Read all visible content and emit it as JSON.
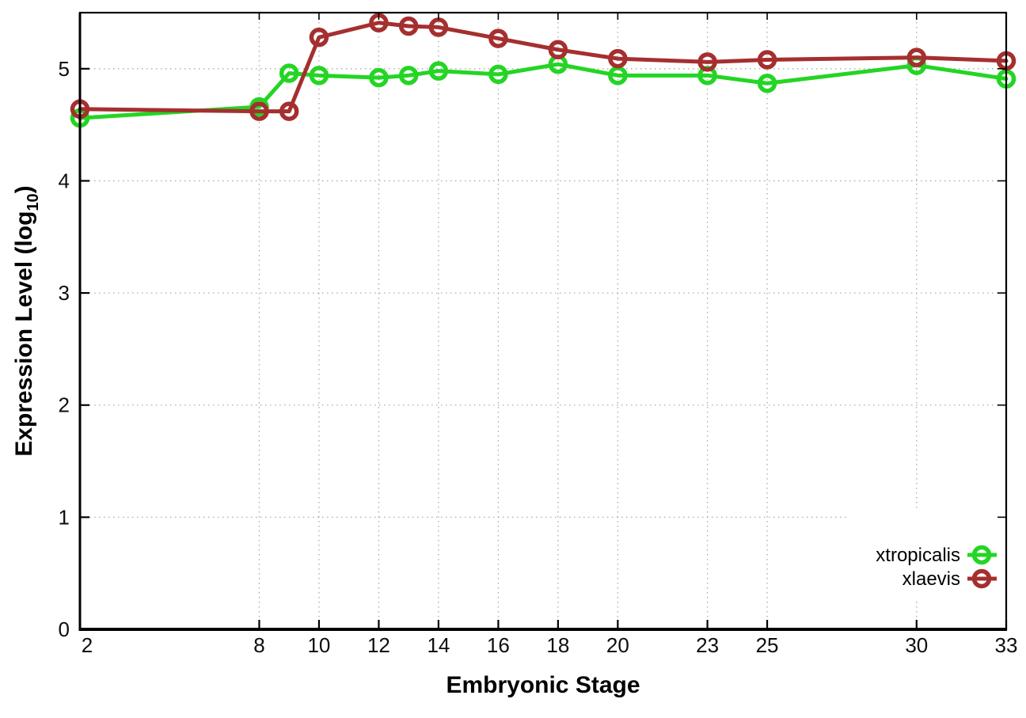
{
  "figure": {
    "background": "#ffffff",
    "grid_color": "#aaaaaa",
    "axis_color": "#000000",
    "text_color": "#0d0d0d"
  },
  "chart_data": {
    "type": "line",
    "title": "",
    "xlabel": "Embryonic Stage",
    "ylabel": "Expression Level (log10)",
    "ylabel_parts": {
      "main": "Expression Level (log",
      "sub": "10",
      "end": ")"
    },
    "xlim": [
      2,
      33
    ],
    "ylim": [
      0,
      5.5
    ],
    "grid": true,
    "grid_style": "dotted",
    "legend_position": "inside-bottom-right",
    "x": [
      2,
      8,
      9,
      10,
      12,
      13,
      14,
      16,
      18,
      20,
      23,
      25,
      30,
      33
    ],
    "xticks": [
      {
        "value": 2,
        "label": "2"
      },
      {
        "value": 8,
        "label": "8"
      },
      {
        "value": 10,
        "label": "10"
      },
      {
        "value": 12,
        "label": "12"
      },
      {
        "value": 14,
        "label": "14"
      },
      {
        "value": 16,
        "label": "16"
      },
      {
        "value": 18,
        "label": "18"
      },
      {
        "value": 20,
        "label": "20"
      },
      {
        "value": 23,
        "label": "23"
      },
      {
        "value": 25,
        "label": "25"
      },
      {
        "value": 30,
        "label": "30"
      },
      {
        "value": 33,
        "label": "33"
      }
    ],
    "yticks": [
      {
        "value": 0,
        "label": "0"
      },
      {
        "value": 1,
        "label": "1"
      },
      {
        "value": 2,
        "label": "2"
      },
      {
        "value": 3,
        "label": "3"
      },
      {
        "value": 4,
        "label": "4"
      },
      {
        "value": 5,
        "label": "5"
      }
    ],
    "series": [
      {
        "name": "xtropicalis",
        "color": "#24d524",
        "marker": "open-circle",
        "line_style": "solid",
        "values": [
          4.56,
          4.66,
          4.96,
          4.94,
          4.92,
          4.94,
          4.98,
          4.95,
          5.04,
          4.94,
          4.94,
          4.87,
          5.03,
          4.91
        ]
      },
      {
        "name": "xlaevis",
        "color": "#a52f2f",
        "marker": "open-circle",
        "line_style": "solid",
        "values": [
          4.64,
          4.62,
          4.62,
          5.28,
          5.41,
          5.38,
          5.37,
          5.27,
          5.17,
          5.09,
          5.06,
          5.08,
          5.1,
          5.07
        ]
      }
    ]
  }
}
